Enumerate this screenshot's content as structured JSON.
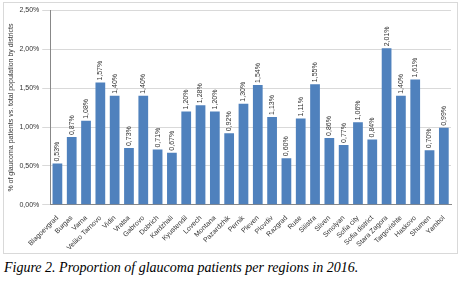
{
  "chart_data": {
    "type": "bar",
    "caption": "Figure 2. Proportion of glaucoma patients per regions in 2016.",
    "y_label": "% of glaucoma patients vs. total population by districts",
    "categories": [
      "Blagoevgrad",
      "Burgas",
      "Varna",
      "Veliko Tarnovo",
      "Vidin",
      "Vratsa",
      "Gabrovo",
      "Dobrich",
      "Kardzhali",
      "Kyustendil",
      "Lovech",
      "Montana",
      "Pazardzhik",
      "Pernik",
      "Pleven",
      "Plovdiv",
      "Razgrad",
      "Ruse",
      "Silistra",
      "Sliven",
      "Smolyan",
      "Sofia city",
      "Sofia district",
      "Stara Zagora",
      "Targovishte",
      "Haskovo",
      "Shumen",
      "Yambol"
    ],
    "values": [
      0.53,
      0.87,
      1.08,
      1.57,
      1.4,
      0.73,
      1.4,
      0.71,
      0.67,
      1.2,
      1.28,
      1.2,
      0.92,
      1.3,
      1.54,
      1.13,
      0.6,
      1.11,
      1.55,
      0.86,
      0.77,
      1.06,
      0.84,
      2.01,
      1.4,
      1.61,
      0.7,
      0.99
    ],
    "value_labels": [
      "0,53%",
      "0,87%",
      "1,08%",
      "1,57%",
      "1,40%",
      "0,73%",
      "1,40%",
      "0,71%",
      "0,67%",
      "1,20%",
      "1,28%",
      "1,20%",
      "0,92%",
      "1,30%",
      "1,54%",
      "1,13%",
      "0,60%",
      "1,11%",
      "1,55%",
      "0,86%",
      "0,77%",
      "1,06%",
      "0,84%",
      "2,01%",
      "1,40%",
      "1,61%",
      "0,70%",
      "0,99%"
    ],
    "data_labels": true,
    "color": "#4f81bd",
    "ylim": [
      0,
      2.5
    ],
    "yticks": [
      {
        "value": 0,
        "label": "0,00%"
      },
      {
        "value": 0.5,
        "label": "0,50%"
      },
      {
        "value": 1,
        "label": "1,00%"
      },
      {
        "value": 1.5,
        "label": "1,50%"
      },
      {
        "value": 2,
        "label": "2,00%"
      },
      {
        "value": 2.5,
        "label": "2,50%"
      }
    ],
    "grid": true
  }
}
